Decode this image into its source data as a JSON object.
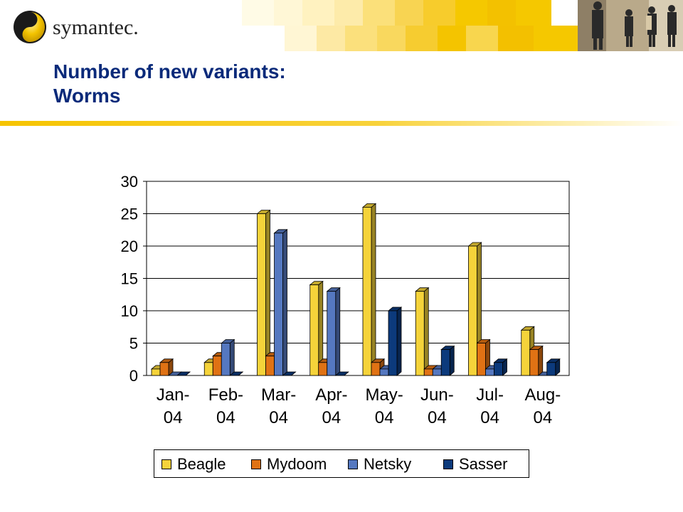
{
  "header": {
    "logo_text": "symantec."
  },
  "slide": {
    "title_line1": "Number of new variants:",
    "title_line2": "Worms"
  },
  "colors": {
    "title": "#0a2a7a",
    "rule": "#f6c400"
  },
  "chart_data": {
    "type": "bar",
    "title": "",
    "xlabel": "",
    "ylabel": "",
    "ylim": [
      0,
      30
    ],
    "yticks": [
      "0",
      "5",
      "10",
      "15",
      "20",
      "25",
      "30"
    ],
    "grid": true,
    "legend_position": "bottom",
    "categories": [
      [
        "Jan-",
        "04"
      ],
      [
        "Feb-",
        "04"
      ],
      [
        "Mar-",
        "04"
      ],
      [
        "Apr-",
        "04"
      ],
      [
        "May-",
        "04"
      ],
      [
        "Jun-",
        "04"
      ],
      [
        "Jul-",
        "04"
      ],
      [
        "Aug-",
        "04"
      ]
    ],
    "series": [
      {
        "name": "Beagle",
        "color": "#f5d33a",
        "values": [
          1,
          2,
          25,
          14,
          26,
          13,
          20,
          7
        ]
      },
      {
        "name": "Mydoom",
        "color": "#e07214",
        "values": [
          2,
          3,
          3,
          2,
          2,
          1,
          5,
          4
        ]
      },
      {
        "name": "Netsky",
        "color": "#5578c0",
        "values": [
          0,
          5,
          22,
          13,
          1,
          1,
          1,
          0
        ]
      },
      {
        "name": "Sasser",
        "color": "#0c3a7c",
        "values": [
          0,
          0,
          0,
          0,
          10,
          4,
          2,
          2
        ]
      }
    ]
  }
}
